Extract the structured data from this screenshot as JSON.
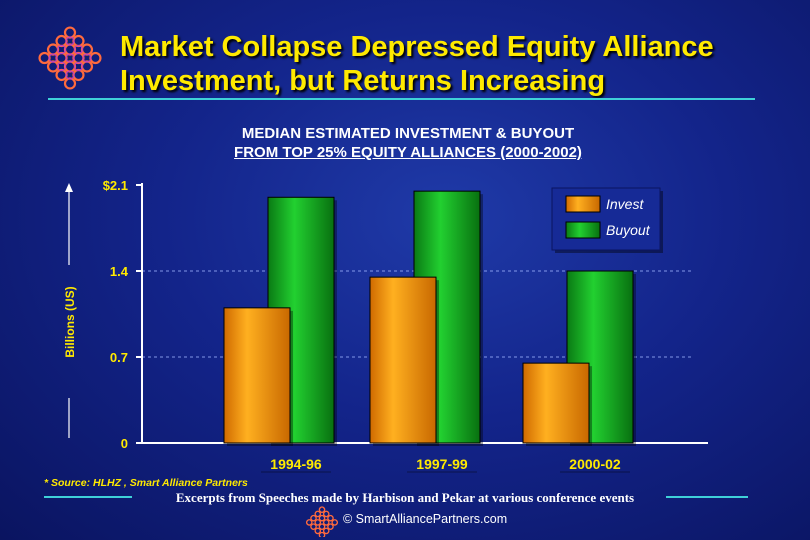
{
  "header": {
    "title_line1": "Market Collapse Depressed Equity Alliance",
    "title_line2": "Investment, but Returns Increasing"
  },
  "subtitle": {
    "line1": "MEDIAN ESTIMATED INVESTMENT & BUYOUT",
    "line2": "FROM TOP 25% EQUITY ALLIANCES (2000-2002)"
  },
  "chart_data": {
    "type": "bar",
    "categories": [
      "1994-96",
      "1997-99",
      "2000-02"
    ],
    "series": [
      {
        "name": "Invest",
        "values": [
          1.1,
          1.35,
          0.65
        ],
        "color": "#f09000"
      },
      {
        "name": "Buyout",
        "values": [
          2.0,
          2.05,
          1.4
        ],
        "color": "#12a81e"
      }
    ],
    "ylabel": "Billions (US)",
    "ylim": [
      0,
      2.1
    ],
    "yticks": [
      {
        "value": 0,
        "label": "0"
      },
      {
        "value": 0.7,
        "label": "0.7"
      },
      {
        "value": 1.4,
        "label": "1.4"
      },
      {
        "value": 2.1,
        "label": "$2.1"
      }
    ],
    "grid": "dashed at 0.7 and 1.4",
    "legend": "top-right"
  },
  "footer": {
    "source": "* Source: HLHZ , Smart Alliance Partners",
    "excerpt": "Excerpts from Speeches made by Harbison and Pekar at various conference events",
    "copyright": "© SmartAlliancePartners.com"
  },
  "colors": {
    "title": "#ffea00",
    "accent_line": "#3fd0d8",
    "axis_text": "#ffea00"
  }
}
